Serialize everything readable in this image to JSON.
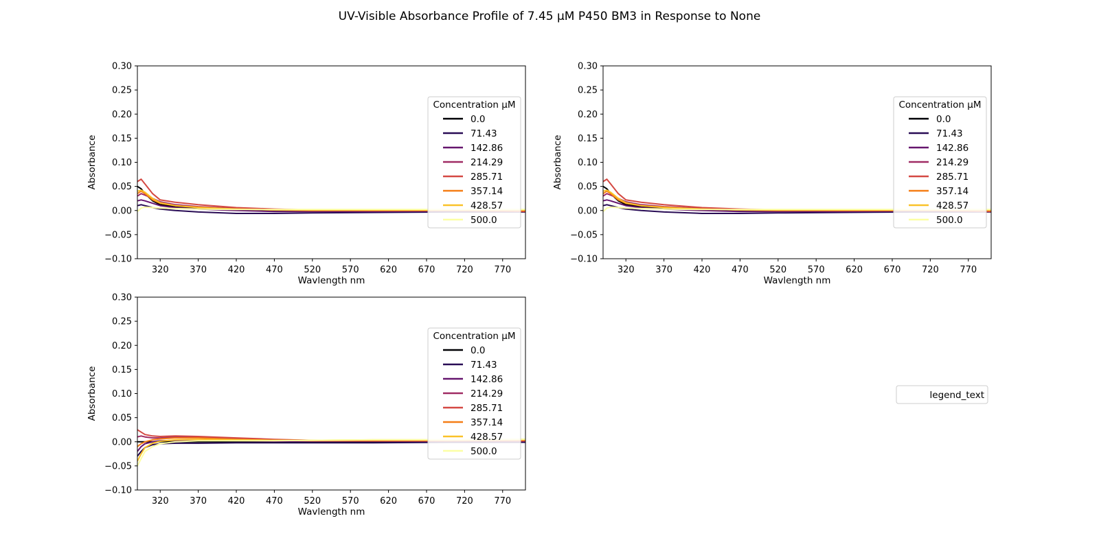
{
  "chart_data": {
    "type": "line",
    "title": "UV-Visible Absorbance Profile of 7.45 µM P450 BM3 in Response to None",
    "legend_title": "Concentration µM",
    "concentrations": [
      "0.0",
      "71.43",
      "142.86",
      "214.29",
      "285.71",
      "357.14",
      "428.57",
      "500.0"
    ],
    "series_colors": [
      "#000004",
      "#280b54",
      "#65156e",
      "#9f2a63",
      "#d44842",
      "#f57d15",
      "#fac228",
      "#fcffa4"
    ],
    "panels": [
      {
        "xlabel": "Wavlength nm",
        "ylabel": "Absorbance",
        "xlim": [
          290,
          800
        ],
        "ylim": [
          -0.1,
          0.3
        ],
        "xticks": [
          320,
          370,
          420,
          470,
          520,
          570,
          620,
          670,
          720,
          770
        ],
        "yticks": [
          "0.30",
          "0.25",
          "0.20",
          "0.15",
          "0.10",
          "0.05",
          "0.00",
          "−0.05",
          "−0.10"
        ],
        "legend_position": "center-right",
        "series": [
          {
            "name": "0.0",
            "x": [
              290,
              295,
              300,
              310,
              320,
              340,
              370,
              420,
              470,
              520,
              600,
              700,
              800
            ],
            "y": [
              0.05,
              0.045,
              0.035,
              0.02,
              0.012,
              0.008,
              0.005,
              0.002,
              0.0,
              0.0,
              0.0,
              0.0,
              0.0
            ]
          },
          {
            "name": "71.43",
            "x": [
              290,
              295,
              300,
              310,
              320,
              340,
              370,
              420,
              470,
              520,
              600,
              700,
              800
            ],
            "y": [
              0.01,
              0.012,
              0.01,
              0.006,
              0.003,
              0.0,
              -0.003,
              -0.006,
              -0.006,
              -0.005,
              -0.004,
              -0.003,
              -0.003
            ]
          },
          {
            "name": "142.86",
            "x": [
              290,
              295,
              300,
              310,
              320,
              340,
              370,
              420,
              470,
              520,
              600,
              700,
              800
            ],
            "y": [
              0.02,
              0.022,
              0.02,
              0.015,
              0.01,
              0.006,
              0.003,
              0.0,
              -0.002,
              -0.002,
              -0.002,
              -0.001,
              -0.001
            ]
          },
          {
            "name": "214.29",
            "x": [
              290,
              295,
              300,
              310,
              320,
              340,
              370,
              420,
              470,
              520,
              600,
              700,
              800
            ],
            "y": [
              0.03,
              0.035,
              0.032,
              0.025,
              0.018,
              0.012,
              0.008,
              0.004,
              0.002,
              0.001,
              0.0,
              0.0,
              0.0
            ]
          },
          {
            "name": "285.71",
            "x": [
              290,
              295,
              300,
              310,
              320,
              340,
              370,
              420,
              470,
              520,
              600,
              700,
              800
            ],
            "y": [
              0.06,
              0.065,
              0.055,
              0.035,
              0.022,
              0.017,
              0.012,
              0.006,
              0.003,
              0.001,
              0.0,
              0.0,
              -0.002
            ]
          },
          {
            "name": "357.14",
            "x": [
              290,
              295,
              300,
              310,
              320,
              340,
              370,
              420,
              470,
              520,
              600,
              700,
              800
            ],
            "y": [
              0.035,
              0.04,
              0.035,
              0.022,
              0.015,
              0.01,
              0.007,
              0.003,
              0.001,
              0.0,
              0.0,
              0.0,
              0.0
            ]
          },
          {
            "name": "428.57",
            "x": [
              290,
              295,
              300,
              310,
              320,
              340,
              370,
              420,
              470,
              520,
              600,
              700,
              800
            ],
            "y": [
              0.04,
              0.042,
              0.038,
              0.025,
              0.016,
              0.01,
              0.006,
              0.003,
              0.001,
              0.001,
              0.001,
              0.001,
              0.001
            ]
          },
          {
            "name": "500.0",
            "x": [
              290,
              295,
              300,
              310,
              320,
              340,
              370,
              420,
              470,
              520,
              600,
              700,
              800
            ],
            "y": [
              -0.002,
              0.005,
              0.007,
              0.006,
              0.005,
              0.004,
              0.003,
              0.002,
              0.002,
              0.002,
              0.002,
              0.002,
              0.002
            ]
          }
        ]
      },
      {
        "xlabel": "Wavlength nm",
        "ylabel": "Absorbance",
        "xlim": [
          290,
          800
        ],
        "ylim": [
          -0.1,
          0.3
        ],
        "xticks": [
          320,
          370,
          420,
          470,
          520,
          570,
          620,
          670,
          720,
          770
        ],
        "yticks": [
          "0.30",
          "0.25",
          "0.20",
          "0.15",
          "0.10",
          "0.05",
          "0.00",
          "−0.05",
          "−0.10"
        ],
        "legend_position": "center-right",
        "series": [
          {
            "name": "0.0",
            "x": [
              290,
              295,
              300,
              310,
              320,
              340,
              370,
              420,
              470,
              520,
              600,
              700,
              800
            ],
            "y": [
              0.05,
              0.045,
              0.035,
              0.02,
              0.012,
              0.008,
              0.005,
              0.002,
              0.0,
              0.0,
              0.0,
              0.0,
              0.0
            ]
          },
          {
            "name": "71.43",
            "x": [
              290,
              295,
              300,
              310,
              320,
              340,
              370,
              420,
              470,
              520,
              600,
              700,
              800
            ],
            "y": [
              0.01,
              0.012,
              0.01,
              0.006,
              0.003,
              0.0,
              -0.003,
              -0.006,
              -0.006,
              -0.005,
              -0.004,
              -0.003,
              -0.003
            ]
          },
          {
            "name": "142.86",
            "x": [
              290,
              295,
              300,
              310,
              320,
              340,
              370,
              420,
              470,
              520,
              600,
              700,
              800
            ],
            "y": [
              0.02,
              0.022,
              0.02,
              0.015,
              0.01,
              0.006,
              0.003,
              0.0,
              -0.002,
              -0.002,
              -0.002,
              -0.001,
              -0.001
            ]
          },
          {
            "name": "214.29",
            "x": [
              290,
              295,
              300,
              310,
              320,
              340,
              370,
              420,
              470,
              520,
              600,
              700,
              800
            ],
            "y": [
              0.03,
              0.035,
              0.032,
              0.025,
              0.018,
              0.012,
              0.008,
              0.004,
              0.002,
              0.001,
              0.0,
              0.0,
              0.0
            ]
          },
          {
            "name": "285.71",
            "x": [
              290,
              295,
              300,
              310,
              320,
              340,
              370,
              420,
              470,
              520,
              600,
              700,
              800
            ],
            "y": [
              0.06,
              0.065,
              0.055,
              0.035,
              0.022,
              0.017,
              0.012,
              0.006,
              0.003,
              0.001,
              0.0,
              0.0,
              -0.002
            ]
          },
          {
            "name": "357.14",
            "x": [
              290,
              295,
              300,
              310,
              320,
              340,
              370,
              420,
              470,
              520,
              600,
              700,
              800
            ],
            "y": [
              0.035,
              0.04,
              0.035,
              0.022,
              0.015,
              0.01,
              0.007,
              0.003,
              0.001,
              0.0,
              0.0,
              0.0,
              0.0
            ]
          },
          {
            "name": "428.57",
            "x": [
              290,
              295,
              300,
              310,
              320,
              340,
              370,
              420,
              470,
              520,
              600,
              700,
              800
            ],
            "y": [
              0.04,
              0.042,
              0.038,
              0.025,
              0.016,
              0.01,
              0.006,
              0.003,
              0.001,
              0.001,
              0.001,
              0.001,
              0.001
            ]
          },
          {
            "name": "500.0",
            "x": [
              290,
              295,
              300,
              310,
              320,
              340,
              370,
              420,
              470,
              520,
              600,
              700,
              800
            ],
            "y": [
              -0.002,
              0.005,
              0.007,
              0.006,
              0.005,
              0.004,
              0.003,
              0.002,
              0.002,
              0.002,
              0.002,
              0.002,
              0.002
            ]
          }
        ]
      },
      {
        "xlabel": "Wavlength nm",
        "ylabel": "Absorbance",
        "xlim": [
          290,
          800
        ],
        "ylim": [
          -0.1,
          0.3
        ],
        "xticks": [
          320,
          370,
          420,
          470,
          520,
          570,
          620,
          670,
          720,
          770
        ],
        "yticks": [
          "0.30",
          "0.25",
          "0.20",
          "0.15",
          "0.10",
          "0.05",
          "0.00",
          "−0.05",
          "−0.10"
        ],
        "legend_position": "center-right",
        "series": [
          {
            "name": "0.0",
            "x": [
              290,
              300,
              320,
              370,
              470,
              570,
              670,
              800
            ],
            "y": [
              0.0,
              0.0,
              0.0,
              0.0,
              0.0,
              0.0,
              0.0,
              0.0
            ]
          },
          {
            "name": "71.43",
            "x": [
              290,
              295,
              300,
              310,
              320,
              340,
              370,
              420,
              470,
              520,
              600,
              700,
              800
            ],
            "y": [
              -0.03,
              -0.02,
              -0.012,
              -0.006,
              -0.004,
              -0.003,
              -0.003,
              -0.002,
              -0.002,
              -0.002,
              -0.002,
              -0.001,
              -0.001
            ]
          },
          {
            "name": "142.86",
            "x": [
              290,
              295,
              300,
              310,
              320,
              340,
              370,
              420,
              470,
              520,
              600,
              700,
              800
            ],
            "y": [
              -0.02,
              -0.01,
              -0.004,
              0.0,
              0.002,
              0.003,
              0.003,
              0.002,
              0.001,
              0.001,
              0.001,
              0.001,
              0.001
            ]
          },
          {
            "name": "214.29",
            "x": [
              290,
              295,
              300,
              310,
              320,
              340,
              370,
              420,
              470,
              520,
              600,
              700,
              800
            ],
            "y": [
              0.01,
              0.012,
              0.01,
              0.008,
              0.008,
              0.01,
              0.01,
              0.007,
              0.004,
              0.003,
              0.002,
              0.002,
              0.002
            ]
          },
          {
            "name": "285.71",
            "x": [
              290,
              295,
              300,
              310,
              320,
              340,
              370,
              420,
              470,
              520,
              600,
              700,
              800
            ],
            "y": [
              0.025,
              0.02,
              0.015,
              0.012,
              0.011,
              0.012,
              0.011,
              0.008,
              0.005,
              0.003,
              0.003,
              0.002,
              0.002
            ]
          },
          {
            "name": "357.14",
            "x": [
              290,
              295,
              300,
              310,
              320,
              340,
              370,
              420,
              470,
              520,
              600,
              700,
              800
            ],
            "y": [
              -0.01,
              -0.004,
              0.0,
              0.004,
              0.006,
              0.008,
              0.008,
              0.005,
              0.003,
              0.002,
              0.002,
              0.002,
              0.003
            ]
          },
          {
            "name": "428.57",
            "x": [
              290,
              295,
              300,
              310,
              320,
              340,
              370,
              420,
              470,
              520,
              600,
              700,
              800
            ],
            "y": [
              -0.04,
              -0.025,
              -0.012,
              -0.003,
              0.001,
              0.004,
              0.005,
              0.004,
              0.003,
              0.003,
              0.004,
              0.004,
              0.005
            ]
          },
          {
            "name": "500.0",
            "x": [
              290,
              295,
              300,
              310,
              320,
              340,
              370,
              420,
              470,
              520,
              600,
              700,
              800
            ],
            "y": [
              -0.05,
              -0.035,
              -0.02,
              -0.01,
              -0.004,
              0.0,
              0.002,
              0.002,
              0.002,
              0.003,
              0.004,
              0.004,
              0.005
            ]
          }
        ]
      }
    ],
    "empty_panel_legend": "legend_text"
  }
}
